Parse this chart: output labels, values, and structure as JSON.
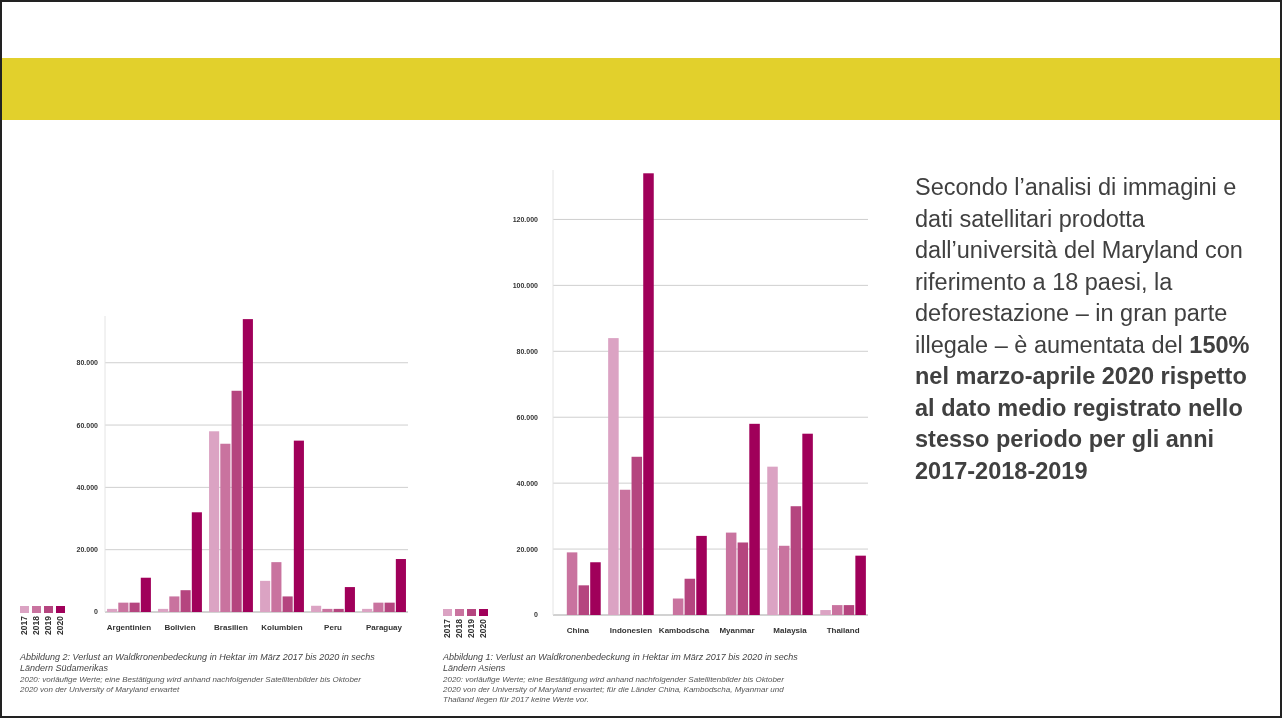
{
  "chart_data": [
    {
      "type": "bar",
      "title": "Abbildung 2: Verlust an Waldkronenbedeckung in Hektar im März 2017 bis 2020 in sechs Ländern Südamerikas",
      "annotations": [
        "2020: vorläufige Werte; eine Bestätigung wird anhand nachfolgender Satellitenbilder bis Oktober 2020 von der University of Maryland erwartet"
      ],
      "categories": [
        "Argentinien",
        "Bolivien",
        "Brasilien",
        "Kolumbien",
        "Peru",
        "Paraguay"
      ],
      "series": [
        {
          "name": "2017",
          "color": "#dba3c3",
          "values": [
            1000,
            1000,
            58000,
            10000,
            2000,
            1000
          ]
        },
        {
          "name": "2018",
          "color": "#c9739f",
          "values": [
            3000,
            5000,
            54000,
            16000,
            1000,
            3000
          ]
        },
        {
          "name": "2019",
          "color": "#b5457f",
          "values": [
            3000,
            7000,
            71000,
            5000,
            1000,
            3000
          ]
        },
        {
          "name": "2020",
          "color": "#a0005a",
          "values": [
            11000,
            32000,
            94000,
            55000,
            8000,
            17000
          ]
        }
      ],
      "ylim": [
        0,
        95000
      ],
      "yticks": [
        0,
        {
          "value": 20000,
          "label": "20.000"
        },
        {
          "value": 40000,
          "label": "40.000"
        },
        {
          "value": 60000,
          "label": "60.000"
        },
        {
          "value": 80000,
          "label": "80.000"
        }
      ],
      "grid": "y",
      "legend": "bottom left"
    },
    {
      "type": "bar",
      "title": "Abbildung 1: Verlust an Waldkronenbedeckung in Hektar im März 2017 bis 2020 in sechs Ländern Asiens",
      "annotations": [
        "2020: vorläufige Werte; eine Bestätigung wird anhand nachfolgender Satellitenbilder bis Oktober 2020 von der University of Maryland erwartet; für die Länder China, Kambodscha, Myanmar und Thailand liegen für 2017 keine Werte vor."
      ],
      "categories": [
        "China",
        "Indonesien",
        "Kambodscha",
        "Myanmar",
        "Malaysia",
        "Thailand"
      ],
      "series": [
        {
          "name": "2017",
          "color": "#dba3c3",
          "values": [
            null,
            84000,
            null,
            null,
            45000,
            1500
          ]
        },
        {
          "name": "2018",
          "color": "#c9739f",
          "values": [
            19000,
            38000,
            5000,
            25000,
            21000,
            3000
          ]
        },
        {
          "name": "2019",
          "color": "#b5457f",
          "values": [
            9000,
            48000,
            11000,
            22000,
            33000,
            3000
          ]
        },
        {
          "name": "2020",
          "color": "#a0005a",
          "values": [
            16000,
            134000,
            24000,
            58000,
            55000,
            18000
          ]
        }
      ],
      "ylim": [
        0,
        135000
      ],
      "yticks": [
        0,
        {
          "value": 20000,
          "label": "20.000"
        },
        {
          "value": 40000,
          "label": "40.000"
        },
        {
          "value": 60000,
          "label": "60.000"
        },
        {
          "value": 80000,
          "label": "80.000"
        },
        {
          "value": 100000,
          "label": "100.000"
        },
        {
          "value": 120000,
          "label": "120.000"
        }
      ],
      "grid": "y",
      "legend": "bottom left"
    },
    {
      "type": "other",
      "annotations": [
        "Secondo l’analisi di immagini e dati satellitari prodotta dall’università del Maryland con riferimento a 18 paesi, la deforestazione – in gran parte illegale – è aumentata del ",
        "150% nel marzo-aprile 2020 rispetto al dato medio registrato nello stesso periodo per gli anni 2017-2018-2019"
      ]
    }
  ]
}
